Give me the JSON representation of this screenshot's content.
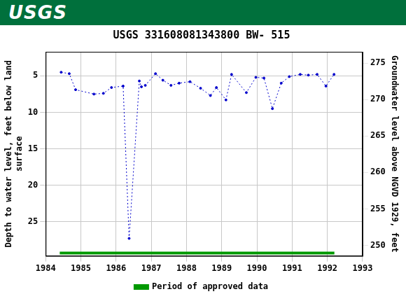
{
  "header": {
    "logo": "USGS"
  },
  "chart_data": {
    "type": "line",
    "title": "USGS 331608081343800 BW- 515",
    "y_label": [
      "Depth to water level, feet below land",
      "surface"
    ],
    "y2_label": "Groundwater level above NGVD 1929, feet",
    "xlim": [
      1984,
      1993
    ],
    "xticks": [
      1984,
      1985,
      1986,
      1987,
      1988,
      1989,
      1990,
      1991,
      1992,
      1993
    ],
    "ylim": [
      29.7,
      1.7
    ],
    "yticks": [
      5,
      10,
      15,
      20,
      25
    ],
    "y2lim": [
      248.55,
      276.55
    ],
    "y2ticks": [
      250,
      255,
      260,
      265,
      270,
      275
    ],
    "grid": true,
    "legend": "bottom",
    "series": [
      {
        "color": "#0000cc",
        "marker": "circle",
        "line_style": "dotted",
        "x": [
          1984.44,
          1984.67,
          1984.85,
          1985.37,
          1985.64,
          1985.87,
          1986.2,
          1986.37,
          1986.66,
          1986.72,
          1986.83,
          1987.12,
          1987.33,
          1987.56,
          1987.79,
          1988.1,
          1988.4,
          1988.68,
          1988.85,
          1989.12,
          1989.28,
          1989.7,
          1989.97,
          1990.2,
          1990.44,
          1990.69,
          1990.92,
          1991.23,
          1991.46,
          1991.71,
          1991.96,
          1992.19
        ],
        "values": [
          4.5,
          4.7,
          6.9,
          7.5,
          7.4,
          6.6,
          6.4,
          27.3,
          5.7,
          6.5,
          6.3,
          4.7,
          5.6,
          6.3,
          6.0,
          5.8,
          6.7,
          7.7,
          6.6,
          8.3,
          4.8,
          7.3,
          5.2,
          5.3,
          9.5,
          6.0,
          5.1,
          4.8,
          4.9,
          4.8,
          6.4,
          4.8
        ]
      },
      {
        "name": "Period of approved data",
        "color": "#009900",
        "line_style": "solid",
        "x": [
          1984.4,
          1992.2
        ],
        "values": [
          29.3,
          29.3
        ]
      }
    ]
  }
}
